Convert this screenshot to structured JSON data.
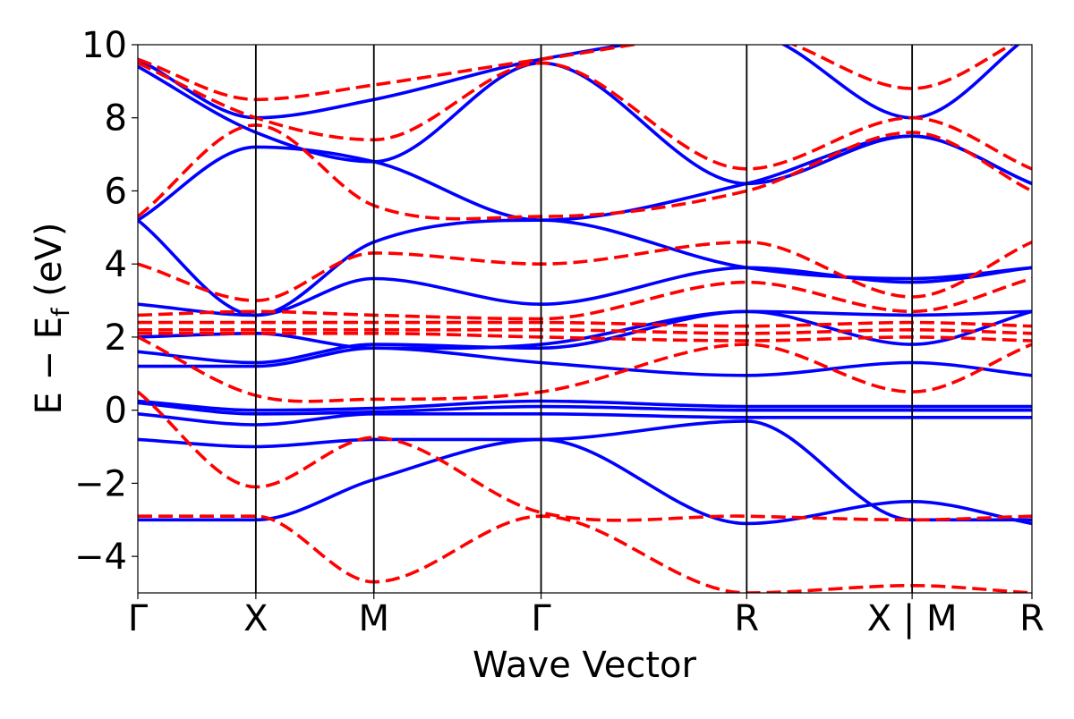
{
  "chart_data": {
    "type": "line",
    "title": "",
    "xlabel": "Wave Vector",
    "ylabel": "E − E",
    "ylabel_subscript": "f",
    "ylabel_suffix": " (eV)",
    "ylim": [
      -5,
      10
    ],
    "yticks": [
      -4,
      -2,
      0,
      2,
      4,
      6,
      8,
      10
    ],
    "ytick_labels": [
      "−4",
      "−2",
      "0",
      "2",
      "4",
      "6",
      "8",
      "10"
    ],
    "xlim": [
      0,
      1
    ],
    "kpoints": [
      {
        "label": "Γ",
        "x": 0.0
      },
      {
        "label": "X",
        "x": 0.132
      },
      {
        "label": "M",
        "x": 0.264
      },
      {
        "label": "Γ",
        "x": 0.451
      },
      {
        "label": "R",
        "x": 0.681
      },
      {
        "label": "X | M",
        "x": 0.866
      },
      {
        "label": "R",
        "x": 1.0
      }
    ],
    "grid": false,
    "series": [
      {
        "style": "solid",
        "color": "#0000ff",
        "x": [
          0,
          0.132,
          0.264,
          0.451,
          0.681,
          0.866,
          1.0
        ],
        "bands": [
          [
            -3.0,
            -3.0,
            -1.9,
            -0.8,
            -3.1,
            -2.5,
            -3.1
          ],
          [
            -0.8,
            -1.0,
            -0.8,
            -0.8,
            -0.3,
            -3.0,
            -3.0
          ],
          [
            -0.1,
            -0.4,
            -0.1,
            -0.1,
            -0.2,
            -0.2,
            -0.2
          ],
          [
            0.2,
            -0.1,
            -0.05,
            0.1,
            0.0,
            0.0,
            0.0
          ],
          [
            0.25,
            0.0,
            0.05,
            0.25,
            0.1,
            0.1,
            0.1
          ],
          [
            1.2,
            1.2,
            1.7,
            1.3,
            0.95,
            1.3,
            0.95
          ],
          [
            1.6,
            1.3,
            1.8,
            1.7,
            2.7,
            1.8,
            2.7
          ],
          [
            2.0,
            2.1,
            1.7,
            1.8,
            2.7,
            2.6,
            2.7
          ],
          [
            2.9,
            2.6,
            3.6,
            2.9,
            3.9,
            3.5,
            3.9
          ],
          [
            5.2,
            2.6,
            4.6,
            5.2,
            3.9,
            3.6,
            3.9
          ],
          [
            5.2,
            7.2,
            6.8,
            5.2,
            6.2,
            7.5,
            6.2
          ],
          [
            9.4,
            7.6,
            6.8,
            9.5,
            6.2,
            7.5,
            6.2
          ],
          [
            9.6,
            8.0,
            8.5,
            9.6,
            10.3,
            8.0,
            10.3
          ]
        ]
      },
      {
        "style": "dashed",
        "color": "#ff0000",
        "x": [
          0,
          0.132,
          0.264,
          0.451,
          0.681,
          0.866,
          1.0
        ],
        "bands": [
          [
            -2.9,
            -2.9,
            -4.7,
            -2.9,
            -5.0,
            -4.8,
            -5.0
          ],
          [
            0.5,
            -2.1,
            -0.75,
            -2.8,
            -2.9,
            -3.0,
            -2.9
          ],
          [
            2.0,
            0.4,
            0.3,
            0.5,
            1.8,
            0.5,
            1.8
          ],
          [
            2.1,
            2.1,
            2.1,
            2.0,
            1.9,
            2.0,
            1.9
          ],
          [
            2.2,
            2.2,
            2.2,
            2.2,
            2.1,
            2.2,
            2.1
          ],
          [
            2.4,
            2.4,
            2.4,
            2.4,
            2.3,
            2.4,
            2.3
          ],
          [
            2.6,
            2.7,
            2.6,
            2.5,
            3.5,
            2.7,
            3.6
          ],
          [
            4.0,
            3.0,
            4.3,
            4.0,
            4.6,
            3.1,
            4.6
          ],
          [
            5.3,
            7.8,
            5.6,
            5.3,
            6.0,
            7.6,
            6.0
          ],
          [
            9.5,
            8.0,
            7.4,
            9.5,
            6.6,
            8.0,
            6.6
          ],
          [
            9.6,
            8.5,
            8.9,
            9.6,
            10.3,
            8.8,
            10.3
          ]
        ]
      }
    ]
  }
}
